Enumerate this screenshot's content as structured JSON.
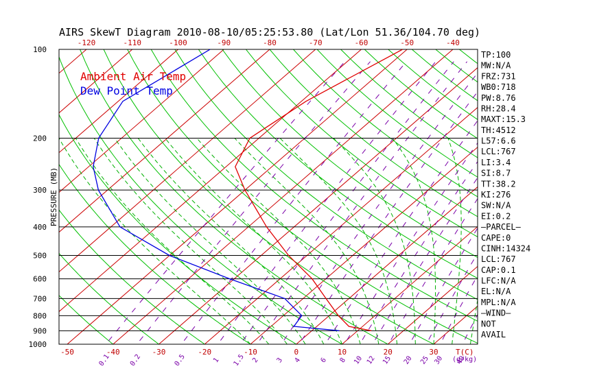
{
  "chart_data": {
    "type": "line",
    "title": "AIRS SkewT Diagram 2010-08-10/05:25:53.80 (Lat/Lon 51.36/104.70 deg)",
    "ylabel": "PRESSURE (MB)",
    "xlabel": "T(C)",
    "pressure_levels": [
      100,
      200,
      300,
      400,
      500,
      600,
      700,
      800,
      900,
      1000
    ],
    "pressure_tick_labels": [
      "100",
      "200",
      "300",
      "400",
      "500",
      "600",
      "700",
      "800",
      "900",
      "1000"
    ],
    "top_temp_labels": [
      "-120",
      "-110",
      "-100",
      "-90",
      "-80",
      "-70",
      "-60",
      "-50",
      "-40"
    ],
    "bottom_temp_labels": [
      "-50",
      "-40",
      "-30",
      "-20",
      "-10",
      "0",
      "10",
      "20",
      "30"
    ],
    "mixing_ratio_labels": [
      "0.1",
      "0.2",
      "0.5",
      "1",
      "1.5",
      "2",
      "3",
      "4",
      "6",
      "8",
      "10",
      "12",
      "15",
      "20",
      "25",
      "30",
      "40"
    ],
    "mixing_unit_label": "g/kg",
    "legend": [
      "Ambient Air Temp",
      "Dew Point Temp"
    ],
    "series": [
      {
        "name": "Ambient Air Temp",
        "color": "#e00000",
        "points": [
          {
            "p": 100,
            "t": -51
          },
          {
            "p": 150,
            "t": -59
          },
          {
            "p": 200,
            "t": -62
          },
          {
            "p": 250,
            "t": -58
          },
          {
            "p": 300,
            "t": -50
          },
          {
            "p": 400,
            "t": -36
          },
          {
            "p": 500,
            "t": -24
          },
          {
            "p": 600,
            "t": -13
          },
          {
            "p": 700,
            "t": -5
          },
          {
            "p": 800,
            "t": 2
          },
          {
            "p": 870,
            "t": 7
          },
          {
            "p": 900,
            "t": 13
          }
        ]
      },
      {
        "name": "Dew Point Temp",
        "color": "#0000e0",
        "points": [
          {
            "p": 100,
            "t": -93
          },
          {
            "p": 150,
            "t": -99
          },
          {
            "p": 200,
            "t": -95
          },
          {
            "p": 250,
            "t": -89
          },
          {
            "p": 300,
            "t": -82
          },
          {
            "p": 400,
            "t": -68
          },
          {
            "p": 500,
            "t": -50
          },
          {
            "p": 600,
            "t": -31
          },
          {
            "p": 700,
            "t": -14
          },
          {
            "p": 800,
            "t": -6
          },
          {
            "p": 870,
            "t": -5
          },
          {
            "p": 900,
            "t": 6
          }
        ]
      }
    ],
    "indices": [
      "TP:100",
      "MW:N/A",
      "FRZ:731",
      "WB0:718",
      "PW:8.76",
      "RH:28.4",
      "MAXT:15.3",
      "TH:4512",
      "L57:6.6",
      "LCL:767",
      "LI:3.4",
      "SI:8.7",
      "TT:38.2",
      "KI:276",
      "SW:N/A",
      "EI:0.2",
      "–PARCEL–",
      "CAPE:0",
      "CINH:14324",
      "LCL:767",
      "CAP:0.1",
      "LFC:N/A",
      "EL:N/A",
      "MPL:N/A",
      "–WIND–",
      "NOT",
      "AVAIL"
    ]
  },
  "colors": {
    "isotherm": "#cc0000",
    "dry_adiabat": "#00c000",
    "moist_adiabat": "#00b000",
    "mixing_ratio": "#7a00a8",
    "isobar": "#000000"
  }
}
